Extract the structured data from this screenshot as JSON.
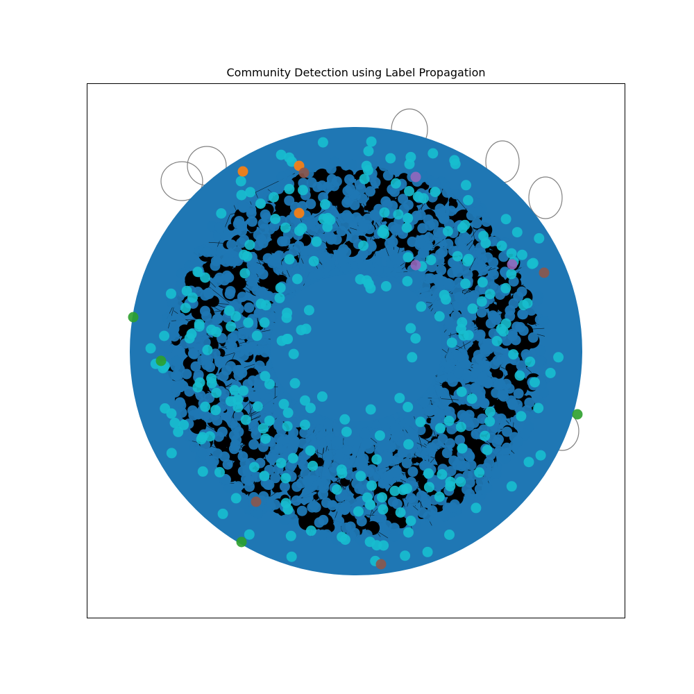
{
  "figure": {
    "title": "Community Detection using Label Propagation"
  },
  "colors": {
    "background": "#ffffff",
    "edge": "#000000",
    "self_loop": "#808080",
    "community_dominant": "#1f77b4",
    "community_cyan": "#17becf",
    "community_orange": "#ff7f0e",
    "community_purple": "#9467bd",
    "community_brown": "#8c564b",
    "community_green": "#2ca02c"
  },
  "network": {
    "layout": "spring",
    "axes_ticks": "hidden",
    "communities": [
      {
        "color_key": "community_dominant",
        "share": "majority"
      },
      {
        "color_key": "community_cyan",
        "share": "minor"
      },
      {
        "color_key": "community_orange",
        "share": "rare"
      },
      {
        "color_key": "community_purple",
        "share": "rare"
      },
      {
        "color_key": "community_brown",
        "share": "rare"
      },
      {
        "color_key": "community_green",
        "share": "rare"
      }
    ],
    "self_loops_visible": true
  }
}
